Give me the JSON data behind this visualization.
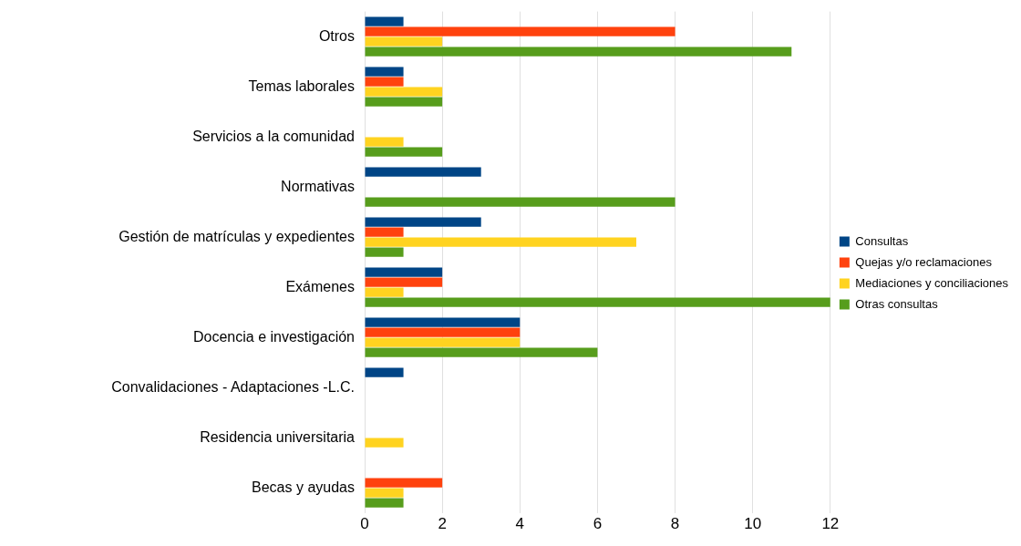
{
  "chart_data": {
    "type": "bar",
    "orientation": "horizontal",
    "categories": [
      "Otros",
      "Temas laborales",
      "Servicios a la comunidad",
      "Normativas",
      "Gestión de matrículas y expedientes",
      "Exámenes",
      "Docencia e investigación",
      "Convalidaciones - Adaptaciones -L.C.",
      "Residencia universitaria",
      "Becas y ayudas"
    ],
    "series": [
      {
        "name": "Consultas",
        "color": "#004586",
        "values": [
          1,
          1,
          0,
          3,
          3,
          2,
          4,
          1,
          0,
          0
        ]
      },
      {
        "name": "Quejas y/o reclamaciones",
        "color": "#ff420e",
        "values": [
          8,
          1,
          0,
          0,
          1,
          2,
          4,
          0,
          0,
          2
        ]
      },
      {
        "name": "Mediaciones y conciliaciones",
        "color": "#ffd320",
        "values": [
          2,
          2,
          1,
          0,
          7,
          1,
          4,
          0,
          1,
          1
        ]
      },
      {
        "name": "Otras consultas",
        "color": "#579d1c",
        "values": [
          11,
          2,
          2,
          8,
          1,
          12,
          6,
          0,
          0,
          1
        ]
      }
    ],
    "xlim": [
      0,
      12
    ],
    "xticks": [
      0,
      2,
      4,
      6,
      8,
      10,
      12
    ],
    "grid": "x",
    "legend": "right"
  }
}
